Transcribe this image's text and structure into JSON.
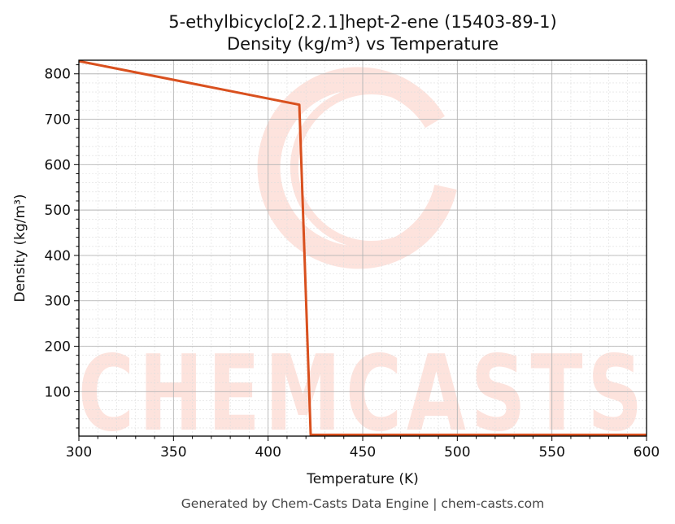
{
  "chart_data": {
    "type": "line",
    "title_line1": "5-ethylbicyclo[2.2.1]hept-2-ene (15403-89-1)",
    "title_line2": "Density (kg/m³) vs Temperature",
    "xlabel": "Temperature (K)",
    "ylabel": "Density (kg/m³)",
    "xlim": [
      300,
      600
    ],
    "ylim": [
      2,
      830
    ],
    "x_ticks": [
      300,
      350,
      400,
      450,
      500,
      550,
      600
    ],
    "y_ticks": [
      100,
      200,
      300,
      400,
      500,
      600,
      700,
      800
    ],
    "grid": true,
    "series": [
      {
        "color": "#d9501e",
        "x": [
          300,
          416.5,
          422.5,
          600
        ],
        "y": [
          828,
          732,
          5,
          5
        ]
      }
    ]
  },
  "watermark": {
    "text": "CHEMCASTS",
    "color": "#fde3dd"
  },
  "footer": "Generated by Chem-Casts Data Engine | chem-casts.com"
}
